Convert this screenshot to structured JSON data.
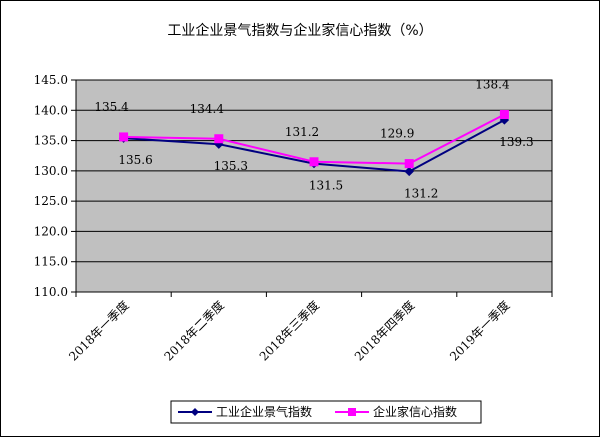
{
  "chart_data": {
    "type": "line",
    "title": "工业企业景气指数与企业家信心指数（%）",
    "categories": [
      "2018年一季度",
      "2018年二季度",
      "2018年三季度",
      "2018年四季度",
      "2019年一季度"
    ],
    "series": [
      {
        "name": "工业企业景气指数",
        "values": [
          135.4,
          134.4,
          131.2,
          129.9,
          138.4
        ],
        "labels": [
          "135.4",
          "134.4",
          "131.2",
          "129.9",
          "138.4"
        ],
        "color": "#000080",
        "marker": "diamond"
      },
      {
        "name": "企业家信心指数",
        "values": [
          135.6,
          135.3,
          131.5,
          131.2,
          139.3
        ],
        "labels": [
          "135.6",
          "135.3",
          "131.5",
          "131.2",
          "139.3"
        ],
        "color": "#FF00FF",
        "marker": "square"
      }
    ],
    "ylim": [
      110,
      145
    ],
    "ytick_labels": [
      "145.0",
      "140.0",
      "135.0",
      "130.0",
      "125.0",
      "120.0",
      "115.0",
      "110.0"
    ],
    "grid": true,
    "plot_background": "#C0C0C0",
    "legend_position": "bottom"
  }
}
